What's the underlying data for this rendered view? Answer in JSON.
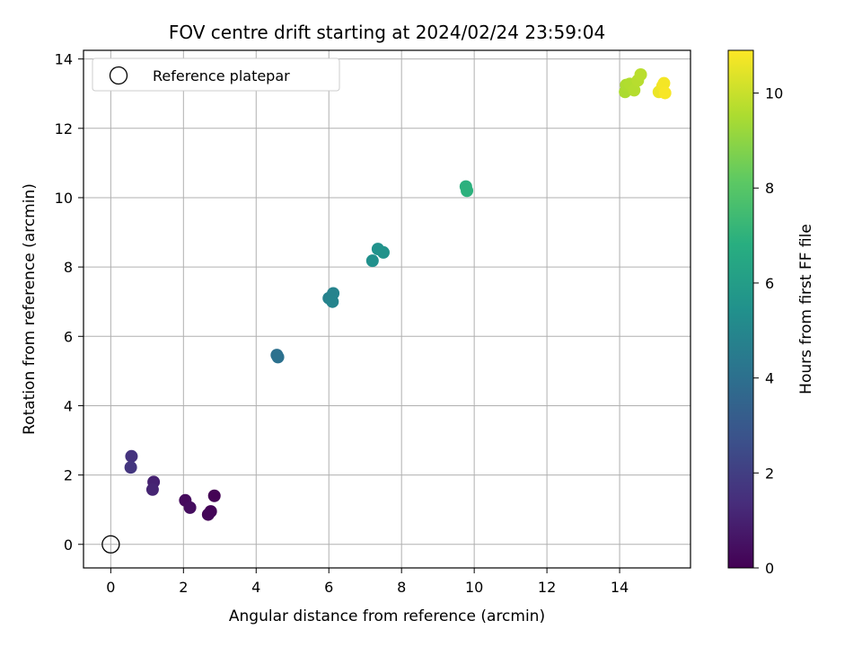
{
  "chart_data": {
    "type": "scatter",
    "title": "FOV centre drift starting at 2024/02/24 23:59:04",
    "xlabel": "Angular distance from reference (arcmin)",
    "ylabel": "Rotation from reference (arcmin)",
    "xlim": [
      -0.75,
      15.95
    ],
    "ylim": [
      -0.68,
      14.25
    ],
    "xticks": [
      0,
      2,
      4,
      6,
      8,
      10,
      12,
      14
    ],
    "yticks": [
      0,
      2,
      4,
      6,
      8,
      10,
      12,
      14
    ],
    "grid": true,
    "legend": {
      "placement": "top-left",
      "entries": [
        "Reference platepar"
      ]
    },
    "reference_point": {
      "x": 0,
      "y": 0
    },
    "colorbar": {
      "label": "Hours from first FF file",
      "range": [
        0,
        10.9
      ],
      "ticks": [
        0,
        2,
        4,
        6,
        8,
        10
      ],
      "colormap": "viridis"
    },
    "points": [
      {
        "x": 2.85,
        "y": 1.4,
        "hours": 0.05
      },
      {
        "x": 2.75,
        "y": 0.95,
        "hours": 0.1
      },
      {
        "x": 2.68,
        "y": 0.86,
        "hours": 0.15
      },
      {
        "x": 2.05,
        "y": 1.27,
        "hours": 0.3
      },
      {
        "x": 2.18,
        "y": 1.06,
        "hours": 0.4
      },
      {
        "x": 1.18,
        "y": 1.8,
        "hours": 1.0
      },
      {
        "x": 1.15,
        "y": 1.58,
        "hours": 1.1
      },
      {
        "x": 0.57,
        "y": 2.54,
        "hours": 1.6
      },
      {
        "x": 0.55,
        "y": 2.22,
        "hours": 1.7
      },
      {
        "x": 4.57,
        "y": 5.46,
        "hours": 4.0
      },
      {
        "x": 4.6,
        "y": 5.4,
        "hours": 4.05
      },
      {
        "x": 6.0,
        "y": 7.1,
        "hours": 4.8
      },
      {
        "x": 6.12,
        "y": 7.24,
        "hours": 4.85
      },
      {
        "x": 6.1,
        "y": 7.0,
        "hours": 4.9
      },
      {
        "x": 7.2,
        "y": 8.18,
        "hours": 5.4
      },
      {
        "x": 7.35,
        "y": 8.52,
        "hours": 5.5
      },
      {
        "x": 7.5,
        "y": 8.42,
        "hours": 5.55
      },
      {
        "x": 9.77,
        "y": 10.32,
        "hours": 6.9
      },
      {
        "x": 9.8,
        "y": 10.2,
        "hours": 6.95
      },
      {
        "x": 14.15,
        "y": 13.05,
        "hours": 9.5
      },
      {
        "x": 14.18,
        "y": 13.25,
        "hours": 9.55
      },
      {
        "x": 14.28,
        "y": 13.28,
        "hours": 9.6
      },
      {
        "x": 14.4,
        "y": 13.1,
        "hours": 9.65
      },
      {
        "x": 14.5,
        "y": 13.38,
        "hours": 9.7
      },
      {
        "x": 14.58,
        "y": 13.55,
        "hours": 9.75
      },
      {
        "x": 15.08,
        "y": 13.05,
        "hours": 10.6
      },
      {
        "x": 15.18,
        "y": 13.22,
        "hours": 10.7
      },
      {
        "x": 15.22,
        "y": 13.3,
        "hours": 10.75
      },
      {
        "x": 15.25,
        "y": 13.02,
        "hours": 10.8
      }
    ]
  }
}
